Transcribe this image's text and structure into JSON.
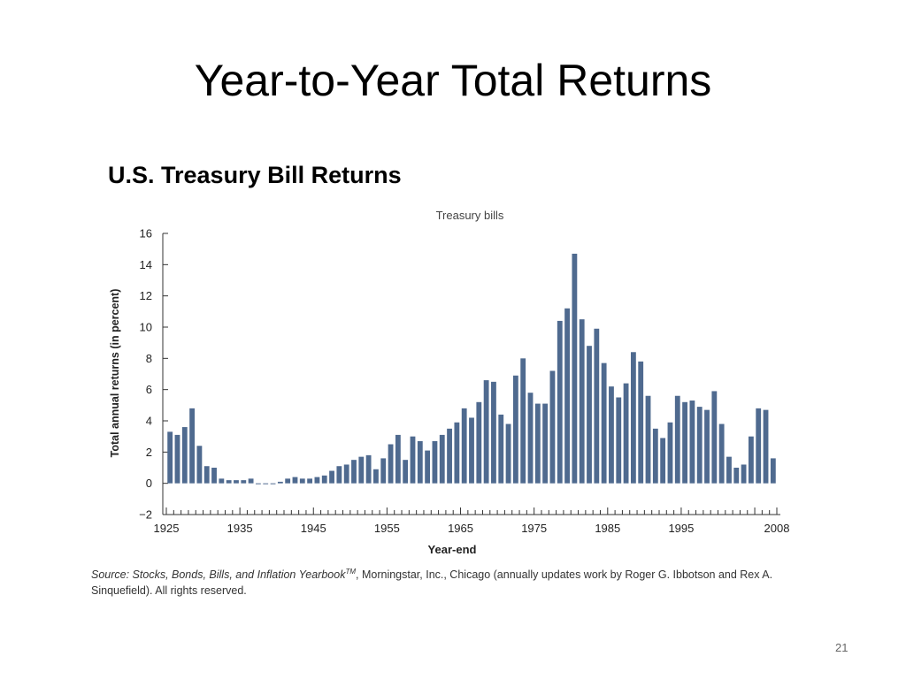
{
  "slide": {
    "title": "Year-to-Year Total Returns",
    "subtitle": "U.S. Treasury Bill Returns",
    "source_italic": "Source: Stocks, Bonds, Bills, and Inflation Yearbook",
    "source_tm": "TM",
    "source_rest": ", Morningstar, Inc., Chicago (annually updates work by Roger G. Ibbotson and Rex A. Sinquefield). All rights reserved.",
    "page_number": "21"
  },
  "colors": {
    "bar": "#4f6a8f",
    "axis": "#333333"
  },
  "chart_data": {
    "type": "bar",
    "title": "Treasury bills",
    "xlabel": "Year-end",
    "ylabel": "Total annual returns (in percent)",
    "ylim": [
      -2,
      16
    ],
    "yticks": [
      "−2",
      "0",
      "2",
      "4",
      "6",
      "8",
      "10",
      "12",
      "14",
      "16"
    ],
    "xtick_labels": [
      "1925",
      "1935",
      "1945",
      "1955",
      "1965",
      "1975",
      "1985",
      "1995",
      "2008"
    ],
    "categories": [
      "1926",
      "1927",
      "1928",
      "1929",
      "1930",
      "1931",
      "1932",
      "1933",
      "1934",
      "1935",
      "1936",
      "1937",
      "1938",
      "1939",
      "1940",
      "1941",
      "1942",
      "1943",
      "1944",
      "1945",
      "1946",
      "1947",
      "1948",
      "1949",
      "1950",
      "1951",
      "1952",
      "1953",
      "1954",
      "1955",
      "1956",
      "1957",
      "1958",
      "1959",
      "1960",
      "1961",
      "1962",
      "1963",
      "1964",
      "1965",
      "1966",
      "1967",
      "1968",
      "1969",
      "1970",
      "1971",
      "1972",
      "1973",
      "1974",
      "1975",
      "1976",
      "1977",
      "1978",
      "1979",
      "1980",
      "1981",
      "1982",
      "1983",
      "1984",
      "1985",
      "1986",
      "1987",
      "1988",
      "1989",
      "1990",
      "1991",
      "1992",
      "1993",
      "1994",
      "1995",
      "1996",
      "1997",
      "1998",
      "1999",
      "2000",
      "2001",
      "2002",
      "2003",
      "2004",
      "2005",
      "2006",
      "2007",
      "2008"
    ],
    "values": [
      3.3,
      3.1,
      3.6,
      4.8,
      2.4,
      1.1,
      1.0,
      0.3,
      0.2,
      0.2,
      0.2,
      0.3,
      0.0,
      0.0,
      0.0,
      0.1,
      0.3,
      0.4,
      0.3,
      0.3,
      0.4,
      0.5,
      0.8,
      1.1,
      1.2,
      1.5,
      1.7,
      1.8,
      0.9,
      1.6,
      2.5,
      3.1,
      1.5,
      3.0,
      2.7,
      2.1,
      2.7,
      3.1,
      3.5,
      3.9,
      4.8,
      4.2,
      5.2,
      6.6,
      6.5,
      4.4,
      3.8,
      6.9,
      8.0,
      5.8,
      5.1,
      5.1,
      7.2,
      10.4,
      11.2,
      14.7,
      10.5,
      8.8,
      9.9,
      7.7,
      6.2,
      5.5,
      6.4,
      8.4,
      7.8,
      5.6,
      3.5,
      2.9,
      3.9,
      5.6,
      5.2,
      5.3,
      4.9,
      4.7,
      5.9,
      3.8,
      1.7,
      1.0,
      1.2,
      3.0,
      4.8,
      4.7,
      1.6
    ]
  }
}
